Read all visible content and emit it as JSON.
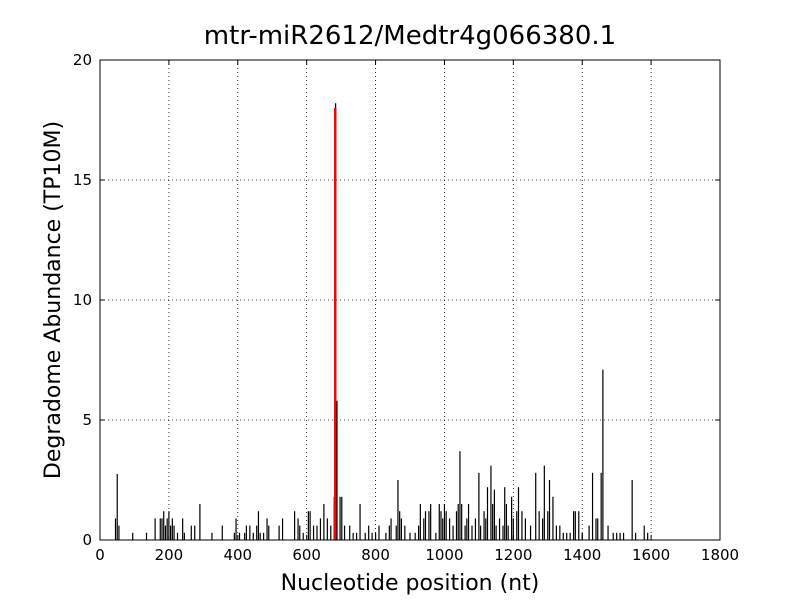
{
  "chart_data": {
    "type": "bar",
    "title": "mtr-miR2612/Medtr4g066380.1",
    "xlabel": "Nucleotide position (nt)",
    "ylabel": "Degradome Abundance (TP10M)",
    "xlim": [
      0,
      1800
    ],
    "xticks": [
      0,
      200,
      400,
      600,
      800,
      1000,
      1200,
      1400,
      1600,
      1800
    ],
    "ylim": [
      0,
      20
    ],
    "yticks": [
      0,
      5,
      10,
      15,
      20
    ],
    "grid": true,
    "series": [
      {
        "color": "#000000",
        "x": [
          45,
          50,
          55,
          95,
          135,
          160,
          175,
          180,
          185,
          190,
          195,
          200,
          205,
          210,
          215,
          225,
          240,
          245,
          265,
          275,
          290,
          325,
          355,
          390,
          395,
          405,
          420,
          425,
          435,
          445,
          455,
          460,
          465,
          475,
          485,
          490,
          520,
          530,
          565,
          575,
          580,
          590,
          605,
          610,
          620,
          630,
          640,
          650,
          660,
          670,
          680,
          684,
          688,
          697,
          702,
          710,
          725,
          735,
          745,
          755,
          770,
          780,
          790,
          800,
          810,
          830,
          840,
          845,
          860,
          865,
          870,
          875,
          885,
          900,
          915,
          925,
          930,
          940,
          945,
          955,
          960,
          975,
          985,
          990,
          995,
          1000,
          1005,
          1015,
          1025,
          1035,
          1040,
          1045,
          1050,
          1060,
          1065,
          1070,
          1080,
          1090,
          1100,
          1105,
          1115,
          1120,
          1125,
          1135,
          1140,
          1145,
          1150,
          1160,
          1170,
          1175,
          1180,
          1185,
          1195,
          1200,
          1210,
          1215,
          1225,
          1235,
          1250,
          1265,
          1275,
          1285,
          1290,
          1300,
          1305,
          1315,
          1325,
          1335,
          1345,
          1355,
          1365,
          1375,
          1380,
          1390,
          1400,
          1420,
          1430,
          1440,
          1445,
          1455,
          1460,
          1475,
          1490,
          1500,
          1510,
          1520,
          1545,
          1555,
          1580,
          1590
        ],
        "values": [
          0.9,
          2.75,
          0.6,
          0.3,
          0.3,
          0.9,
          0.9,
          0.9,
          1.2,
          0.6,
          0.9,
          1.2,
          0.6,
          0.9,
          0.6,
          0.3,
          0.9,
          0.3,
          0.6,
          0.6,
          1.5,
          0.3,
          0.6,
          0.3,
          0.9,
          0.3,
          0.3,
          0.6,
          0.6,
          0.3,
          0.6,
          1.2,
          0.3,
          0.3,
          0.9,
          0.6,
          0.6,
          0.9,
          1.2,
          0.9,
          0.6,
          0.3,
          1.2,
          1.2,
          0.6,
          0.6,
          0.9,
          1.5,
          0.9,
          0.6,
          1.8,
          18.2,
          5.8,
          1.8,
          1.8,
          0.6,
          0.6,
          0.3,
          0.3,
          1.5,
          0.3,
          0.6,
          0.3,
          0.3,
          0.6,
          0.3,
          0.6,
          0.9,
          0.6,
          2.5,
          1.2,
          0.9,
          0.6,
          0.3,
          0.3,
          0.6,
          1.5,
          0.9,
          1.2,
          1.2,
          1.5,
          0.3,
          1.5,
          1.2,
          0.9,
          1.5,
          1.2,
          0.9,
          0.6,
          1.2,
          1.5,
          3.7,
          1.5,
          0.6,
          0.9,
          1.5,
          0.6,
          0.9,
          2.8,
          0.6,
          1.2,
          0.9,
          2.2,
          3.1,
          1.5,
          2.1,
          0.6,
          0.9,
          0.6,
          2.2,
          1.5,
          0.6,
          1.8,
          0.9,
          1.2,
          2.2,
          1.2,
          0.9,
          0.6,
          2.8,
          1.2,
          0.9,
          3.1,
          1.2,
          2.5,
          1.8,
          0.6,
          0.6,
          0.3,
          0.3,
          0.3,
          1.2,
          1.2,
          1.2,
          0.3,
          0.6,
          2.8,
          0.9,
          0.9,
          2.8,
          7.1,
          0.6,
          0.3,
          0.3,
          0.3,
          0.3,
          2.5,
          0.3,
          0.6,
          0.3
        ]
      },
      {
        "color": "#ff0000",
        "x": [
          683
        ],
        "values": [
          18
        ]
      }
    ]
  }
}
